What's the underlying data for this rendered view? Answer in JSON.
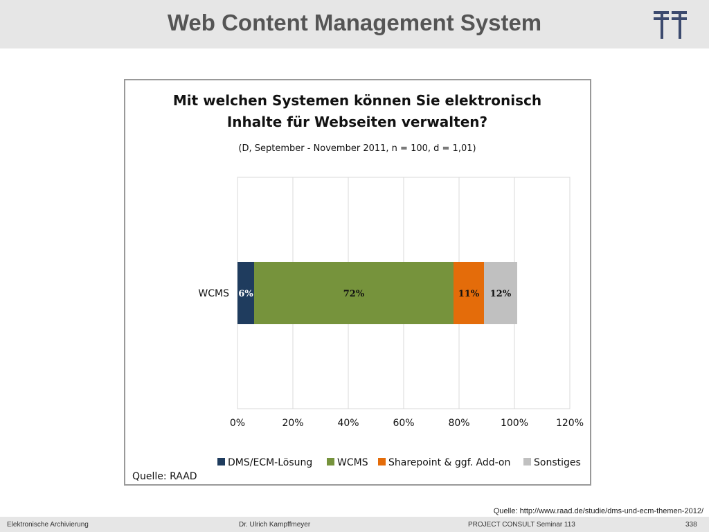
{
  "slide": {
    "title": "Web Content Management System",
    "source": "Quelle: http://www.raad.de/studie/dms-und-ecm-themen-2012/"
  },
  "footer": {
    "left": "Elektronische Archivierung",
    "center": "Dr. Ulrich Kampffmeyer",
    "right": "PROJECT CONSULT Seminar 113",
    "page": "338"
  },
  "chart_data": {
    "type": "bar",
    "orientation": "horizontal",
    "stacked": true,
    "title": "Mit welchen Systemen können Sie elektronisch Inhalte für Webseiten verwalten?",
    "title_lines": [
      "Mit welchen Systemen können Sie elektronisch",
      "Inhalte für Webseiten verwalten?"
    ],
    "subtitle": "(D, September - November 2011, n = 100, d = 1,01)",
    "categories": [
      "WCMS"
    ],
    "series": [
      {
        "name": "DMS/ECM-Lösung",
        "values": [
          6
        ],
        "label": "6%",
        "color": "#1f3c5e",
        "label_color": "#ffffff"
      },
      {
        "name": "WCMS",
        "values": [
          72
        ],
        "label": "72%",
        "color": "#76933c",
        "label_color": "#111111"
      },
      {
        "name": "Sharepoint & ggf. Add-on",
        "values": [
          11
        ],
        "label": "11%",
        "color": "#e46c0a",
        "label_color": "#111111"
      },
      {
        "name": "Sonstiges",
        "values": [
          12
        ],
        "label": "12%",
        "color": "#c0c0c0",
        "label_color": "#111111"
      }
    ],
    "x_ticks": [
      "0%",
      "20%",
      "40%",
      "60%",
      "80%",
      "100%",
      "120%"
    ],
    "xlim": [
      0,
      120
    ],
    "grid": true,
    "legend_position": "bottom",
    "source_note": "Quelle: RAAD"
  }
}
